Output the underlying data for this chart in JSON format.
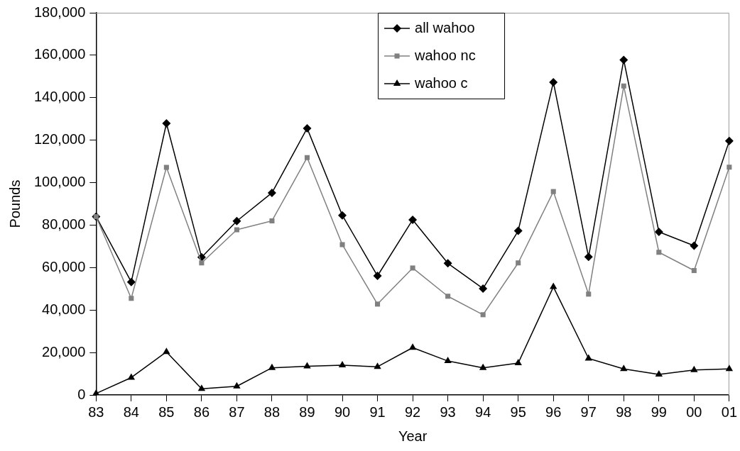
{
  "chart_data": {
    "type": "line",
    "xlabel": "Year",
    "ylabel": "Pounds",
    "categories": [
      "83",
      "84",
      "85",
      "86",
      "87",
      "88",
      "89",
      "90",
      "91",
      "92",
      "93",
      "94",
      "95",
      "96",
      "97",
      "98",
      "99",
      "00",
      "01"
    ],
    "series": [
      {
        "name": "all wahoo",
        "color": "#000000",
        "marker": "diamond",
        "values": [
          84000,
          53200,
          127900,
          64900,
          81900,
          95200,
          125600,
          84600,
          56100,
          82500,
          62000,
          50100,
          77300,
          147300,
          65000,
          157800,
          76800,
          70300,
          119600
        ]
      },
      {
        "name": "wahoo nc",
        "color": "#808080",
        "marker": "square",
        "values": [
          84000,
          45500,
          107200,
          62200,
          77800,
          82000,
          111800,
          70800,
          42800,
          59800,
          46500,
          37800,
          62200,
          95800,
          47500,
          145500,
          67200,
          58600,
          107300
        ]
      },
      {
        "name": "wahoo c",
        "color": "#000000",
        "marker": "triangle",
        "values": [
          700,
          8200,
          20300,
          2900,
          4100,
          12800,
          13500,
          14000,
          13300,
          22300,
          16000,
          12800,
          15000,
          50900,
          17200,
          12300,
          9700,
          11800,
          12300
        ]
      }
    ],
    "ylim": [
      0,
      180000
    ],
    "yticks": [
      0,
      {
        "value": 20000,
        "label": "20,000"
      },
      {
        "value": 40000,
        "label": "40,000"
      },
      {
        "value": 60000,
        "label": "60,000"
      },
      {
        "value": 80000,
        "label": "80,000"
      },
      {
        "value": 100000,
        "label": "100,000"
      },
      {
        "value": 120000,
        "label": "120,000"
      },
      {
        "value": 140000,
        "label": "140,000"
      },
      {
        "value": 160000,
        "label": "160,000"
      },
      {
        "value": 180000,
        "label": "180,000"
      }
    ],
    "grid": false,
    "legend": "top",
    "line_style": "solid"
  }
}
